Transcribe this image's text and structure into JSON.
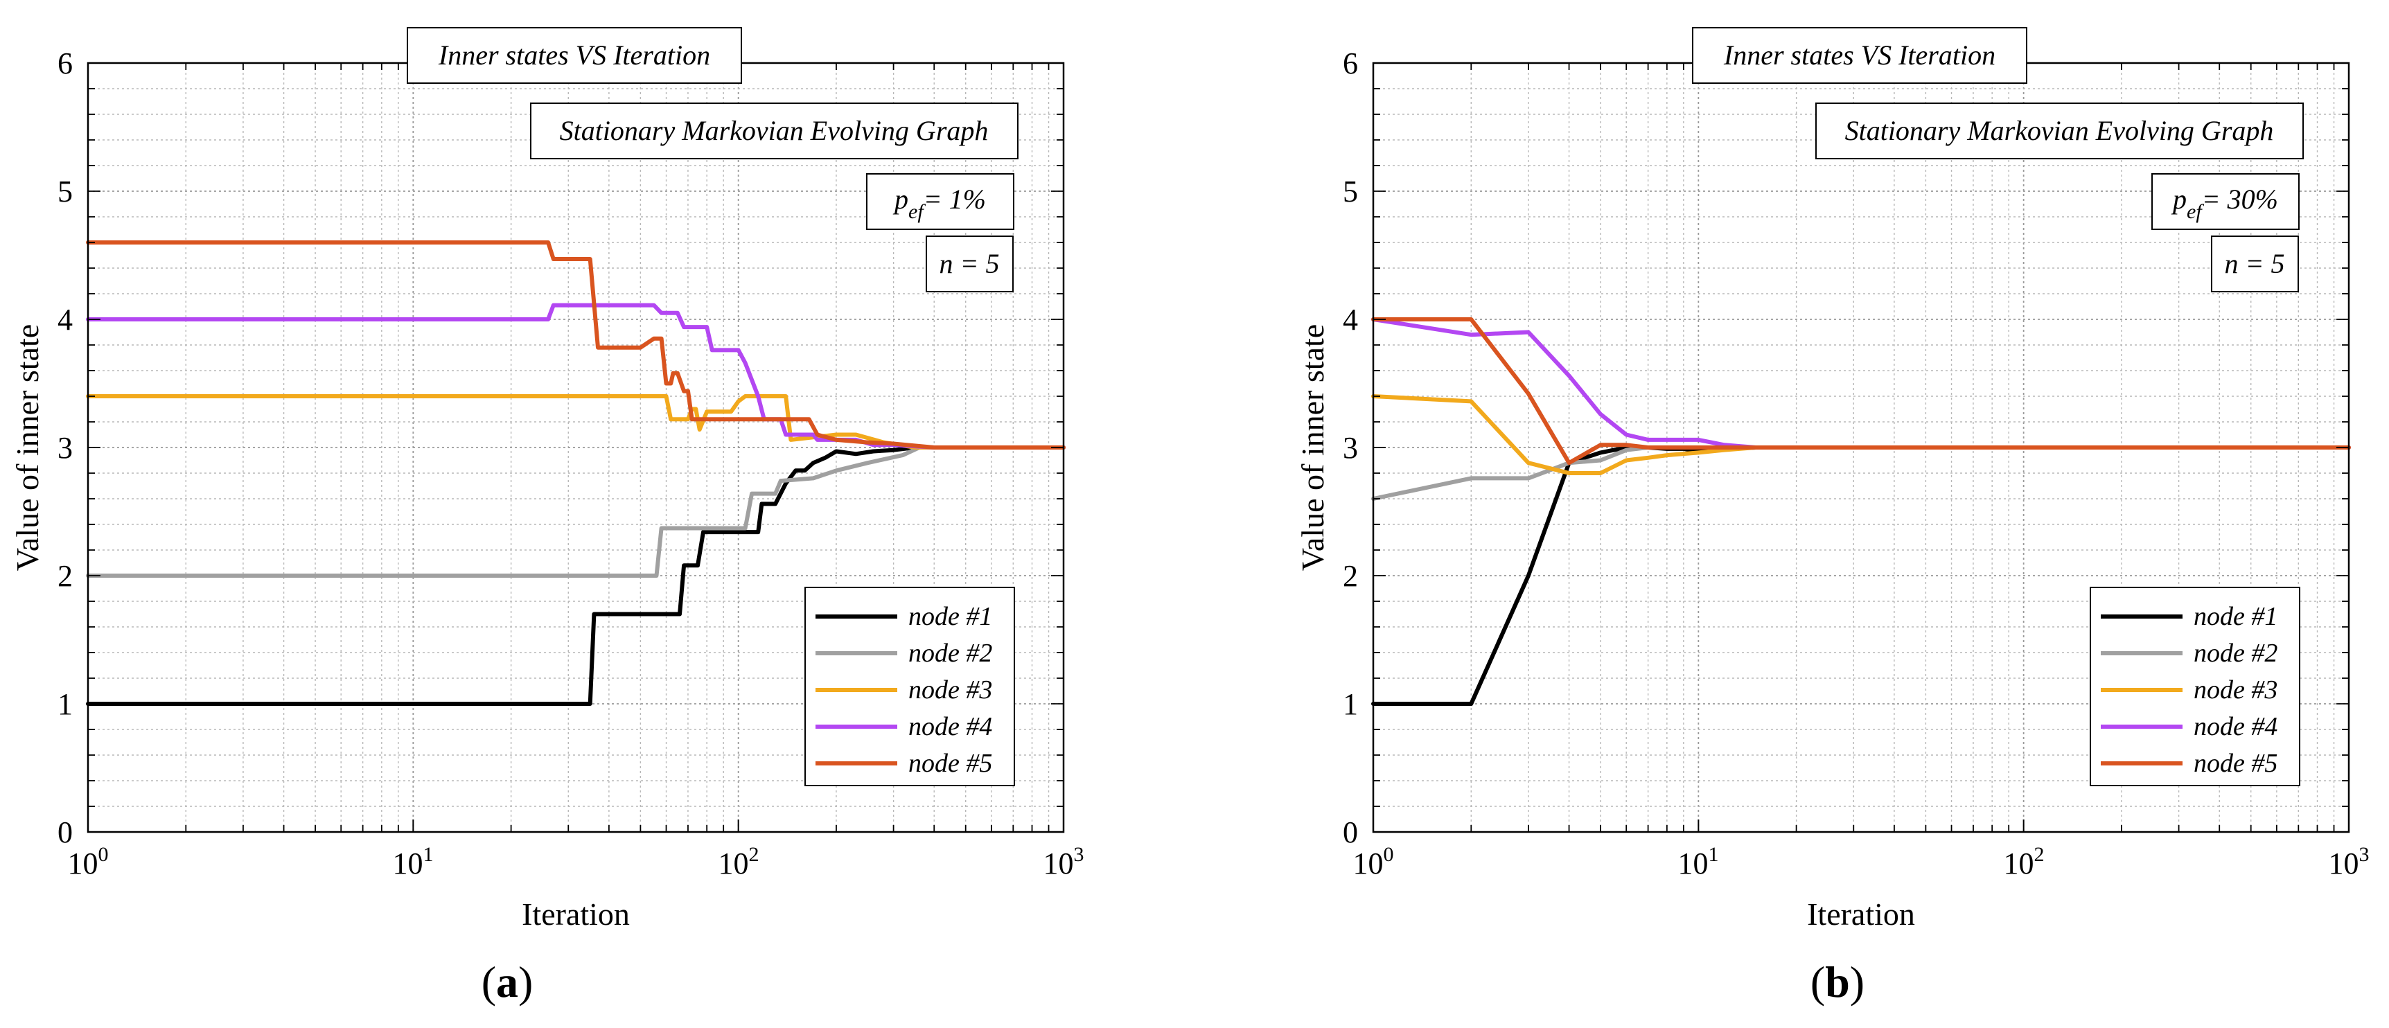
{
  "colors": {
    "node1": "#000000",
    "node2": "#a0a0a0",
    "node3": "#f2a91c",
    "node4": "#b347f2",
    "node5": "#d9541f",
    "grid": "#b8b8b8"
  },
  "chart_data": [
    {
      "type": "line",
      "panel_label": "(a)",
      "panel_letter": "a",
      "title": "Inner states VS Iteration",
      "subtitle": "Stationary Markovian Evolving Graph",
      "pef_text": "= 1%",
      "n_text": "n = 5",
      "xlabel": "Iteration",
      "ylabel": "Value of inner state",
      "xscale": "log",
      "xlim": [
        1,
        1000
      ],
      "ylim": [
        0,
        6
      ],
      "yticks": [
        0,
        1,
        2,
        3,
        4,
        5,
        6
      ],
      "xticks": [
        {
          "base": "10",
          "exp": "0"
        },
        {
          "base": "10",
          "exp": "1"
        },
        {
          "base": "10",
          "exp": "2"
        },
        {
          "base": "10",
          "exp": "3"
        }
      ],
      "grid": true,
      "legend_position": "bottom-right",
      "series": [
        {
          "name": "node #1",
          "color_key": "node1",
          "x": [
            1,
            35,
            36,
            66,
            68,
            75,
            78,
            115,
            118,
            130,
            140,
            150,
            160,
            170,
            185,
            200,
            230,
            260,
            300,
            350,
            500,
            1000
          ],
          "y": [
            1,
            1,
            1.7,
            1.7,
            2.08,
            2.08,
            2.34,
            2.34,
            2.56,
            2.56,
            2.72,
            2.82,
            2.82,
            2.88,
            2.92,
            2.97,
            2.95,
            2.97,
            2.98,
            3.0,
            3.0,
            3.0
          ]
        },
        {
          "name": "node #2",
          "color_key": "node2",
          "x": [
            1,
            56,
            58,
            105,
            110,
            130,
            135,
            170,
            200,
            250,
            320,
            360,
            500,
            1000
          ],
          "y": [
            2,
            2,
            2.37,
            2.37,
            2.64,
            2.64,
            2.74,
            2.76,
            2.82,
            2.88,
            2.94,
            3.0,
            3.0,
            3.0
          ]
        },
        {
          "name": "node #3",
          "color_key": "node3",
          "x": [
            1,
            60,
            62,
            70,
            72,
            74,
            76,
            80,
            95,
            100,
            105,
            115,
            130,
            140,
            145,
            200,
            230,
            280,
            350,
            500,
            1000
          ],
          "y": [
            3.4,
            3.4,
            3.22,
            3.22,
            3.3,
            3.3,
            3.14,
            3.28,
            3.28,
            3.36,
            3.4,
            3.4,
            3.4,
            3.4,
            3.06,
            3.1,
            3.1,
            3.04,
            3.0,
            3.0,
            3.0
          ]
        },
        {
          "name": "node #4",
          "color_key": "node4",
          "x": [
            1,
            26,
            27,
            55,
            58,
            65,
            68,
            80,
            83,
            100,
            105,
            115,
            120,
            135,
            140,
            170,
            175,
            230,
            260,
            300,
            400,
            1000
          ],
          "y": [
            4,
            4,
            4.11,
            4.11,
            4.05,
            4.05,
            3.94,
            3.94,
            3.76,
            3.76,
            3.66,
            3.4,
            3.22,
            3.22,
            3.1,
            3.1,
            3.06,
            3.06,
            3.02,
            3.02,
            3.0,
            3.0
          ]
        },
        {
          "name": "node #5",
          "color_key": "node5",
          "x": [
            1,
            26,
            27,
            35,
            37,
            50,
            55,
            58,
            60,
            62,
            63,
            65,
            68,
            70,
            72,
            85,
            100,
            120,
            165,
            175,
            200,
            250,
            300,
            400,
            1000
          ],
          "y": [
            4.6,
            4.6,
            4.47,
            4.47,
            3.78,
            3.78,
            3.85,
            3.85,
            3.5,
            3.5,
            3.58,
            3.58,
            3.44,
            3.44,
            3.22,
            3.22,
            3.22,
            3.22,
            3.22,
            3.1,
            3.06,
            3.04,
            3.03,
            3.0,
            3.0
          ]
        }
      ]
    },
    {
      "type": "line",
      "panel_label": "(b)",
      "panel_letter": "b",
      "title": "Inner states VS Iteration",
      "subtitle": "Stationary Markovian Evolving Graph",
      "pef_text": "= 30%",
      "n_text": "n = 5",
      "xlabel": "Iteration",
      "ylabel": "Value of inner state",
      "xscale": "log",
      "xlim": [
        1,
        1000
      ],
      "ylim": [
        0,
        6
      ],
      "yticks": [
        0,
        1,
        2,
        3,
        4,
        5,
        6
      ],
      "xticks": [
        {
          "base": "10",
          "exp": "0"
        },
        {
          "base": "10",
          "exp": "1"
        },
        {
          "base": "10",
          "exp": "2"
        },
        {
          "base": "10",
          "exp": "3"
        }
      ],
      "grid": true,
      "legend_position": "bottom-right",
      "series": [
        {
          "name": "node #1",
          "color_key": "node1",
          "x": [
            1,
            2,
            3,
            4,
            5,
            6,
            7,
            8,
            9,
            10,
            12,
            15,
            20,
            1000
          ],
          "y": [
            1,
            1,
            2.0,
            2.88,
            2.96,
            3.0,
            3.0,
            2.99,
            2.99,
            2.97,
            2.99,
            3.0,
            3.0,
            3.0
          ]
        },
        {
          "name": "node #2",
          "color_key": "node2",
          "x": [
            1,
            2,
            3,
            4,
            5,
            6,
            7,
            8,
            10,
            12,
            15,
            20,
            1000
          ],
          "y": [
            2.6,
            2.76,
            2.76,
            2.88,
            2.9,
            2.98,
            3.0,
            3.0,
            3.0,
            3.0,
            3.0,
            3.0,
            3.0
          ]
        },
        {
          "name": "node #3",
          "color_key": "node3",
          "x": [
            1,
            2,
            3,
            4,
            5,
            6,
            7,
            8,
            10,
            12,
            15,
            20,
            1000
          ],
          "y": [
            3.4,
            3.36,
            2.88,
            2.8,
            2.8,
            2.9,
            2.92,
            2.94,
            2.96,
            2.98,
            3.0,
            3.0,
            3.0
          ]
        },
        {
          "name": "node #4",
          "color_key": "node4",
          "x": [
            1,
            2,
            3,
            4,
            5,
            6,
            7,
            8,
            10,
            12,
            15,
            20,
            1000
          ],
          "y": [
            4.0,
            3.88,
            3.9,
            3.56,
            3.26,
            3.1,
            3.06,
            3.06,
            3.06,
            3.02,
            3.0,
            3.0,
            3.0
          ]
        },
        {
          "name": "node #5",
          "color_key": "node5",
          "x": [
            1,
            2,
            3,
            4,
            5,
            6,
            7,
            8,
            10,
            12,
            15,
            20,
            1000
          ],
          "y": [
            4.0,
            4.0,
            3.42,
            2.88,
            3.02,
            3.02,
            3.0,
            3.0,
            3.0,
            3.0,
            3.0,
            3.0,
            3.0
          ]
        }
      ]
    }
  ]
}
